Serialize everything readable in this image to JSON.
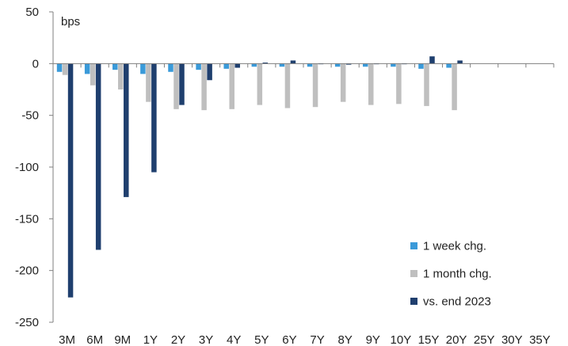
{
  "chart_data": {
    "type": "bar",
    "unit_label": "bps",
    "categories": [
      "3M",
      "6M",
      "9M",
      "1Y",
      "2Y",
      "3Y",
      "4Y",
      "5Y",
      "6Y",
      "7Y",
      "8Y",
      "9Y",
      "10Y",
      "15Y",
      "20Y",
      "25Y",
      "30Y",
      "35Y"
    ],
    "ylim": [
      -250,
      50
    ],
    "yticks": [
      50,
      0,
      -50,
      -100,
      -150,
      -200,
      -250
    ],
    "legend_position": "bottom-right",
    "grid": false,
    "series": [
      {
        "name": "1 week chg.",
        "color": "#3a9ad9",
        "values": [
          -8,
          -10,
          -6,
          -10,
          -8,
          -6,
          -5,
          -3,
          -3,
          -3,
          -3,
          -3,
          -3,
          -5,
          -4,
          null,
          null,
          null
        ]
      },
      {
        "name": "1 month chg.",
        "color": "#bfbfbf",
        "values": [
          -11,
          -21,
          -25,
          -37,
          -44,
          -45,
          -44,
          -40,
          -43,
          -42,
          -37,
          -40,
          -39,
          -41,
          -45,
          null,
          null,
          null
        ]
      },
      {
        "name": "vs. end 2023",
        "color": "#1f3f6e",
        "values": [
          -226,
          -180,
          -129,
          -105,
          -40,
          -16,
          -4,
          1,
          3,
          0,
          -1,
          0,
          0,
          7,
          3,
          null,
          null,
          null
        ]
      }
    ]
  }
}
